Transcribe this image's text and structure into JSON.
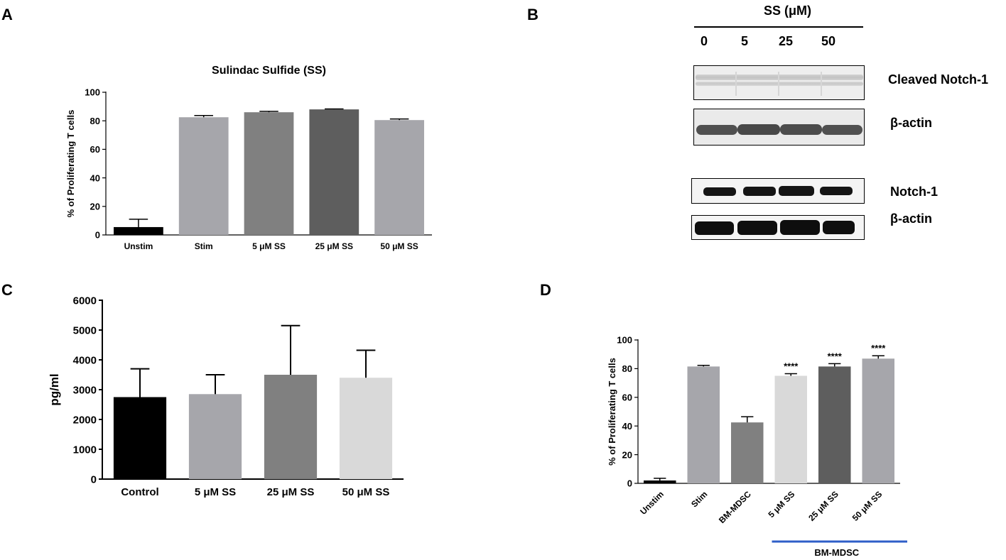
{
  "panels": {
    "a": "A",
    "b": "B",
    "c": "C",
    "d": "D"
  },
  "chart_data": [
    {
      "id": "A",
      "type": "bar",
      "title": "Sulindac Sulfide (SS)",
      "ylabel": "% of Proliferating T cells",
      "xlabel": "",
      "categories": [
        "Unstim",
        "Stim",
        "5 μM SS",
        "25 μM SS",
        "50 μM SS"
      ],
      "values": [
        5.5,
        82.5,
        86,
        88,
        80.5
      ],
      "errors": [
        5.5,
        1.2,
        0.6,
        0.3,
        0.8
      ],
      "colors": [
        "#000000",
        "#a6a6ab",
        "#808080",
        "#5e5e5e",
        "#a6a6ab"
      ],
      "ylim": [
        0,
        100
      ],
      "yticks": [
        0,
        20,
        40,
        60,
        80,
        100
      ],
      "grid": false
    },
    {
      "id": "C",
      "type": "bar",
      "title": "",
      "ylabel": "pg/ml",
      "xlabel": "",
      "categories": [
        "Control",
        "5 μM SS",
        "25 μM SS",
        "50 μM SS"
      ],
      "values": [
        2750,
        2850,
        3500,
        3400
      ],
      "errors": [
        950,
        650,
        1650,
        920
      ],
      "colors": [
        "#000000",
        "#a6a6ab",
        "#808080",
        "#d9d9d9"
      ],
      "ylim": [
        0,
        6000
      ],
      "yticks": [
        0,
        1000,
        2000,
        3000,
        4000,
        5000,
        6000
      ],
      "grid": false
    },
    {
      "id": "D",
      "type": "bar",
      "title": "",
      "ylabel": "% of Proliferating T cells",
      "xlabel": "",
      "categories": [
        "Unstim",
        "Stim",
        "BM-MDSC",
        "5 μM SS",
        "25 μM SS",
        "50 μM SS"
      ],
      "values": [
        2,
        81.5,
        42.5,
        75,
        81.5,
        87
      ],
      "errors": [
        1.5,
        0.8,
        4,
        1.5,
        2,
        2
      ],
      "colors": [
        "#000000",
        "#a6a6ab",
        "#808080",
        "#d9d9d9",
        "#5e5e5e",
        "#a6a6ab"
      ],
      "annotations": [
        "",
        "",
        "",
        "****",
        "****",
        "****"
      ],
      "group_label": "BM-MDSC",
      "group_line_color": "#2f5fc8",
      "ylim": [
        0,
        100
      ],
      "yticks": [
        0,
        20,
        40,
        60,
        80,
        100
      ],
      "grid": false
    }
  ],
  "blot": {
    "header": "SS (μM)",
    "lanes": [
      "0",
      "5",
      "25",
      "50"
    ],
    "rows": [
      "Cleaved Notch-1",
      "β-actin",
      "Notch-1",
      "β-actin"
    ]
  }
}
